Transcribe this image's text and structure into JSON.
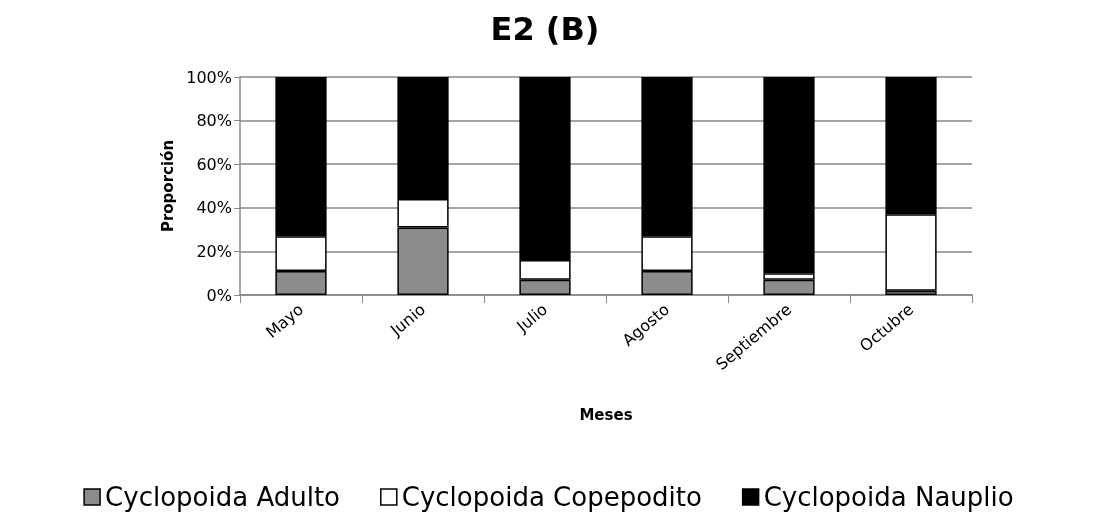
{
  "chart_data": {
    "type": "bar",
    "title": "E2 (B)",
    "xlabel": "Meses",
    "ylabel": "Proporción",
    "categories": [
      "Mayo",
      "Junio",
      "Julio",
      "Agosto",
      "Septiembre",
      "Octubre"
    ],
    "series": [
      {
        "name": "Cyclopoida Adulto",
        "color": "#8c8c8c",
        "values": [
          11,
          31,
          7,
          11,
          7,
          2
        ]
      },
      {
        "name": "Cyclopoida Copepodito",
        "color": "#ffffff",
        "values": [
          16,
          13,
          9,
          16,
          3,
          35
        ]
      },
      {
        "name": "Cyclopoida Nauplio",
        "color": "#000000",
        "values": [
          73,
          56,
          84,
          73,
          90,
          63
        ]
      }
    ],
    "stacked": true,
    "ylim": [
      0,
      100
    ],
    "yticks": [
      {
        "value": 0,
        "label": "0%"
      },
      {
        "value": 20,
        "label": "20%"
      },
      {
        "value": 40,
        "label": "40%"
      },
      {
        "value": 60,
        "label": "60%"
      },
      {
        "value": 80,
        "label": "80%"
      },
      {
        "value": 100,
        "label": "100%"
      }
    ],
    "grid": "y",
    "legend": "bottom"
  }
}
